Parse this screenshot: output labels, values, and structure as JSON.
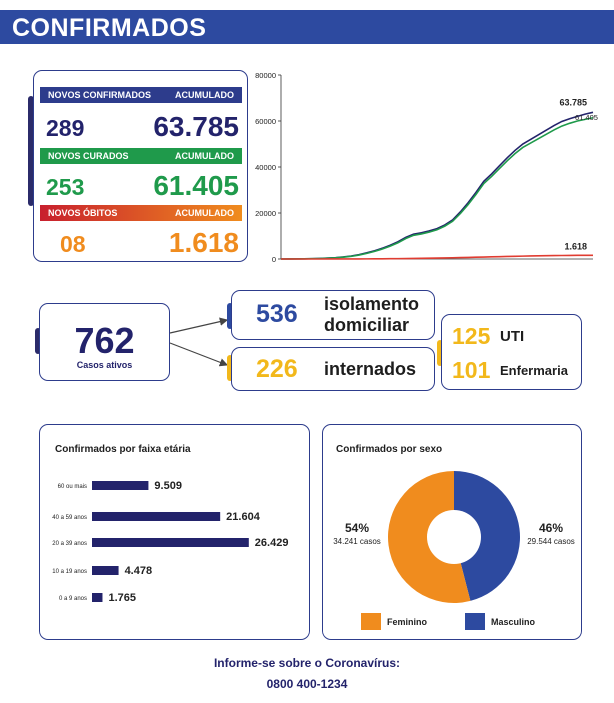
{
  "header": {
    "title": "CONFIRMADOS"
  },
  "summary": {
    "confirmados": {
      "label": "NOVOS CONFIRMADOS",
      "acc_label": "ACUMULADO",
      "new": "289",
      "total": "63.785",
      "color": "#2d3c8c"
    },
    "curados": {
      "label": "NOVOS CURADOS",
      "acc_label": "ACUMULADO",
      "new": "253",
      "total": "61.405",
      "color": "#1f9a4b"
    },
    "obitos": {
      "label": "NOVOS ÓBITOS",
      "acc_label": "ACUMULADO",
      "new": "08",
      "total": "1.618",
      "color": "#f08c1e"
    }
  },
  "active": {
    "total": "762",
    "total_label": "Casos ativos",
    "isolamento": {
      "value": "536",
      "label_line1": "isolamento",
      "label_line2": "domiciliar"
    },
    "internados": {
      "value": "226",
      "label": "internados"
    },
    "uti": {
      "value": "125",
      "label": "UTI"
    },
    "enfermaria": {
      "value": "101",
      "label": "Enfermaria"
    }
  },
  "chart_data": [
    {
      "type": "line",
      "x": [
        0,
        1,
        2,
        3,
        4,
        5,
        6,
        7,
        8,
        9,
        10,
        11,
        12,
        13,
        14,
        15,
        16,
        17,
        18,
        19,
        20,
        21,
        22,
        23,
        24,
        25,
        26,
        27,
        28,
        29,
        30,
        31,
        32,
        33,
        34,
        35,
        36,
        37,
        38,
        39,
        40
      ],
      "ylim": [
        0,
        80000
      ],
      "yticks": [
        0,
        20000,
        40000,
        60000,
        80000
      ],
      "ytick_labels": [
        "0",
        "20000",
        "40000",
        "60000",
        "80000"
      ],
      "grid": false,
      "end_labels": [
        "63.785",
        "61.405",
        "1.618"
      ],
      "series": [
        {
          "color": "#23236b",
          "values": [
            0,
            20,
            50,
            100,
            160,
            250,
            400,
            600,
            900,
            1300,
            1900,
            2700,
            3600,
            4700,
            6000,
            7500,
            9400,
            10800,
            11400,
            12200,
            13200,
            14800,
            17000,
            20500,
            24500,
            29000,
            33800,
            37000,
            40500,
            44000,
            47200,
            50000,
            52000,
            54000,
            56000,
            58000,
            59800,
            61000,
            62000,
            63000,
            63785
          ]
        },
        {
          "color": "#1f9a4b",
          "values": [
            0,
            15,
            40,
            80,
            130,
            210,
            340,
            520,
            800,
            1150,
            1700,
            2450,
            3300,
            4350,
            5600,
            7050,
            8900,
            10300,
            10900,
            11700,
            12700,
            14300,
            16400,
            19800,
            23700,
            28100,
            32800,
            35900,
            39300,
            42700,
            45800,
            48500,
            50400,
            52300,
            54200,
            56100,
            57800,
            59000,
            60000,
            60700,
            61405
          ]
        },
        {
          "color": "#e03c31",
          "values": [
            0,
            0,
            1,
            2,
            3,
            5,
            8,
            12,
            18,
            25,
            35,
            50,
            70,
            95,
            125,
            160,
            200,
            245,
            295,
            350,
            410,
            475,
            545,
            620,
            700,
            780,
            860,
            940,
            1020,
            1100,
            1180,
            1250,
            1320,
            1380,
            1430,
            1480,
            1520,
            1555,
            1585,
            1605,
            1618
          ]
        }
      ]
    },
    {
      "type": "bar",
      "title": "Confirmados por faixa etária",
      "categories": [
        "60 ou mais",
        "40 a 59 anos",
        "20 a 39 anos",
        "10 a 19 anos",
        "0 a 9 anos"
      ],
      "values": [
        9509,
        21604,
        26429,
        4478,
        1765
      ],
      "value_labels": [
        "9.509",
        "21.604",
        "26.429",
        "4.478",
        "1.765"
      ],
      "color": "#23236b"
    },
    {
      "type": "pie",
      "title": "Confirmados por sexo",
      "slices": [
        {
          "label": "Feminino",
          "percent": 54,
          "pct_label": "54%",
          "count_label": "34.241 casos",
          "color": "#f08c1e"
        },
        {
          "label": "Masculino",
          "percent": 46,
          "pct_label": "46%",
          "count_label": "29.544 casos",
          "color": "#2d4aa0"
        }
      ]
    }
  ],
  "footer": {
    "line1": "Informe-se sobre o Coronavírus:",
    "line2": "0800 400-1234"
  }
}
